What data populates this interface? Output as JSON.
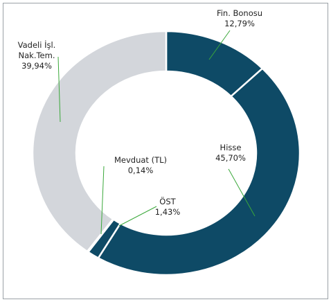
{
  "chart_data": {
    "type": "donut",
    "categories": [
      "Fin. Bonosu",
      "Hisse",
      "ÖST",
      "Mevduat (TL)",
      "Vadeli İşl. Nak.Tem."
    ],
    "values": [
      12.79,
      45.7,
      1.43,
      0.14,
      39.94
    ],
    "value_labels": [
      "12,79%",
      "45,70%",
      "1,43%",
      "0,14%",
      "39,94%"
    ],
    "colors": [
      "#0e4a66",
      "#0e4a66",
      "#0e4a66",
      "#0e4a66",
      "#d3d6db"
    ]
  }
}
